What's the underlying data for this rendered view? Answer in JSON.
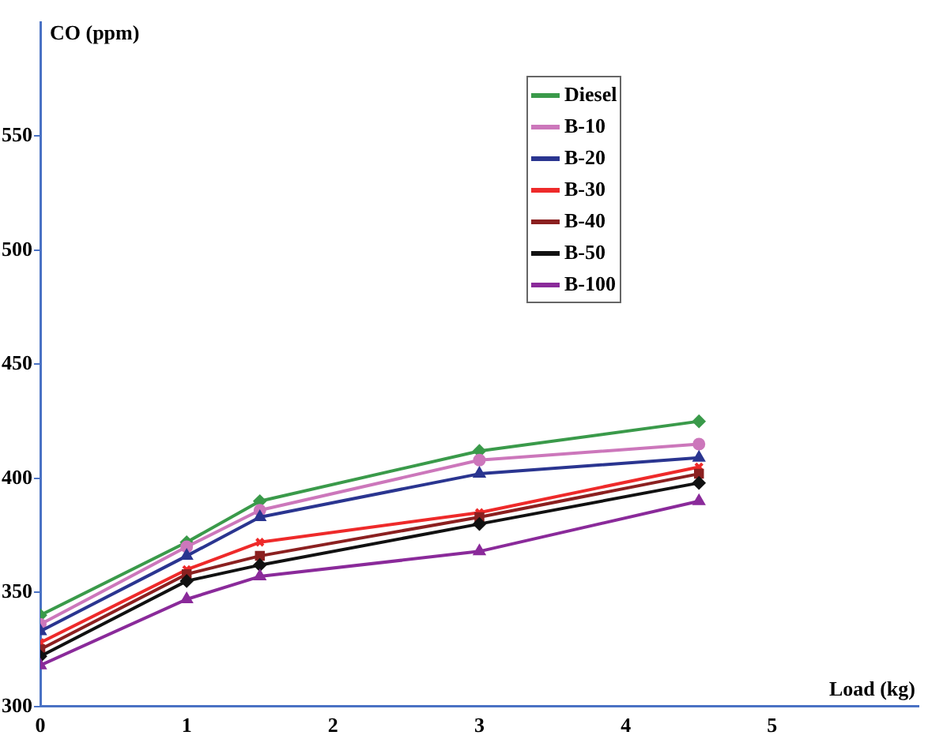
{
  "chart_data": {
    "type": "line",
    "xlabel": "Load (kg)",
    "ylabel": "CO (ppm)",
    "xlim": [
      0,
      6
    ],
    "xticks": [
      0,
      1,
      2,
      3,
      4,
      5
    ],
    "ylim": [
      300,
      600
    ],
    "yticks": [
      300,
      350,
      400,
      450,
      500,
      550
    ],
    "x": [
      0,
      1,
      1.5,
      3,
      4.5
    ],
    "grid": false,
    "legend": "top",
    "line_style": "solid",
    "series": [
      {
        "name": "Diesel",
        "color": "#3a9a4a",
        "marker": "diamond",
        "values": [
          340,
          372,
          390,
          412,
          425
        ]
      },
      {
        "name": "B-10",
        "color": "#cc77bb",
        "marker": "circle",
        "values": [
          336,
          370,
          386,
          408,
          415
        ]
      },
      {
        "name": "B-20",
        "color": "#2a3590",
        "marker": "triangle",
        "values": [
          333,
          366,
          383,
          402,
          409
        ]
      },
      {
        "name": "B-30",
        "color": "#ee2a2a",
        "marker": "cross",
        "values": [
          328,
          360,
          372,
          385,
          405
        ]
      },
      {
        "name": "B-40",
        "color": "#8b2020",
        "marker": "square",
        "values": [
          325,
          358,
          366,
          383,
          402
        ]
      },
      {
        "name": "B-50",
        "color": "#111111",
        "marker": "diamond",
        "values": [
          322,
          355,
          362,
          380,
          398
        ]
      },
      {
        "name": "B-100",
        "color": "#8a2a9a",
        "marker": "triangle",
        "values": [
          318,
          347,
          357,
          368,
          390
        ]
      }
    ]
  }
}
